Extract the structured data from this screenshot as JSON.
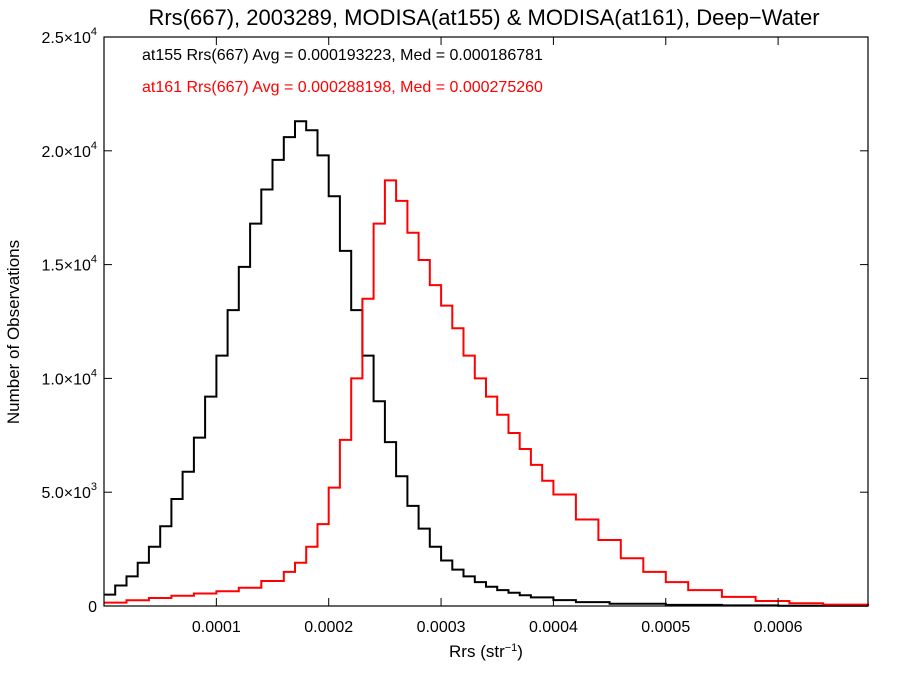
{
  "chart_data": {
    "type": "line",
    "step": true,
    "title": "Rrs(667), 2003289, MODISA(at155) & MODISA(at161), Deep−Water",
    "xlabel": "Rrs (str",
    "xlabel_sup": "−1",
    "xlabel_end": ")",
    "ylabel": "Number of Observations",
    "xlim": [
      0.0,
      0.00068
    ],
    "ylim": [
      0,
      25000
    ],
    "x_ticks": [
      {
        "value": 0.0001,
        "label": "0.0001"
      },
      {
        "value": 0.0002,
        "label": "0.0002"
      },
      {
        "value": 0.0003,
        "label": "0.0003"
      },
      {
        "value": 0.0004,
        "label": "0.0004"
      },
      {
        "value": 0.0005,
        "label": "0.0005"
      },
      {
        "value": 0.0006,
        "label": "0.0006"
      }
    ],
    "y_ticks": [
      {
        "value": 0,
        "mantissa": "0",
        "exp": ""
      },
      {
        "value": 5000,
        "mantissa": "5.0×10",
        "exp": "3"
      },
      {
        "value": 10000,
        "mantissa": "1.0×10",
        "exp": "4"
      },
      {
        "value": 15000,
        "mantissa": "1.5×10",
        "exp": "4"
      },
      {
        "value": 20000,
        "mantissa": "2.0×10",
        "exp": "4"
      },
      {
        "value": 25000,
        "mantissa": "2.5×10",
        "exp": "4"
      }
    ],
    "legend": [
      {
        "text": "at155 Rrs(667) Avg = 0.000193223, Med = 0.000186781",
        "color": "#000000"
      },
      {
        "text": "at161 Rrs(667) Avg = 0.000288198, Med = 0.000275260",
        "color": "#ff0000"
      }
    ],
    "series": [
      {
        "color": "#000000",
        "x": [
          0.0,
          1e-05,
          2e-05,
          3e-05,
          4e-05,
          5e-05,
          6e-05,
          7e-05,
          8e-05,
          9e-05,
          0.0001,
          0.00011,
          0.00012,
          0.00013,
          0.00014,
          0.00015,
          0.00016,
          0.00017,
          0.00018,
          0.00019,
          0.0002,
          0.00021,
          0.00022,
          0.00023,
          0.00024,
          0.00025,
          0.00026,
          0.00027,
          0.00028,
          0.00029,
          0.0003,
          0.00031,
          0.00032,
          0.00033,
          0.00034,
          0.00035,
          0.00036,
          0.00037,
          0.00038,
          0.0004,
          0.00042,
          0.00045,
          0.0005,
          0.00055,
          0.0006,
          0.00068
        ],
        "y": [
          500,
          900,
          1300,
          1900,
          2600,
          3500,
          4700,
          5900,
          7400,
          9200,
          11000,
          13000,
          14900,
          16800,
          18300,
          19600,
          20600,
          21300,
          20900,
          19800,
          18000,
          15600,
          13000,
          11000,
          9000,
          7200,
          5700,
          4400,
          3400,
          2600,
          2000,
          1600,
          1300,
          1050,
          850,
          700,
          580,
          470,
          380,
          260,
          170,
          100,
          50,
          25,
          10,
          0
        ]
      },
      {
        "color": "#ff0000",
        "x": [
          0.0,
          2e-05,
          4e-05,
          6e-05,
          8e-05,
          0.0001,
          0.00012,
          0.00014,
          0.00016,
          0.00017,
          0.00018,
          0.00019,
          0.0002,
          0.00021,
          0.00022,
          0.00023,
          0.00024,
          0.00025,
          0.00026,
          0.00027,
          0.00028,
          0.00029,
          0.0003,
          0.00031,
          0.00032,
          0.00033,
          0.00034,
          0.00035,
          0.00036,
          0.00037,
          0.00038,
          0.00039,
          0.0004,
          0.00042,
          0.00044,
          0.00046,
          0.00048,
          0.0005,
          0.00052,
          0.00055,
          0.00058,
          0.00061,
          0.00064,
          0.00068
        ],
        "y": [
          150,
          250,
          350,
          450,
          550,
          650,
          800,
          1100,
          1500,
          1900,
          2600,
          3600,
          5200,
          7300,
          10000,
          13500,
          16800,
          18700,
          17800,
          16400,
          15200,
          14100,
          13200,
          12200,
          11000,
          10000,
          9200,
          8400,
          7600,
          6900,
          6200,
          5500,
          4900,
          3800,
          2900,
          2100,
          1500,
          1050,
          700,
          400,
          220,
          120,
          60,
          20
        ]
      }
    ]
  }
}
